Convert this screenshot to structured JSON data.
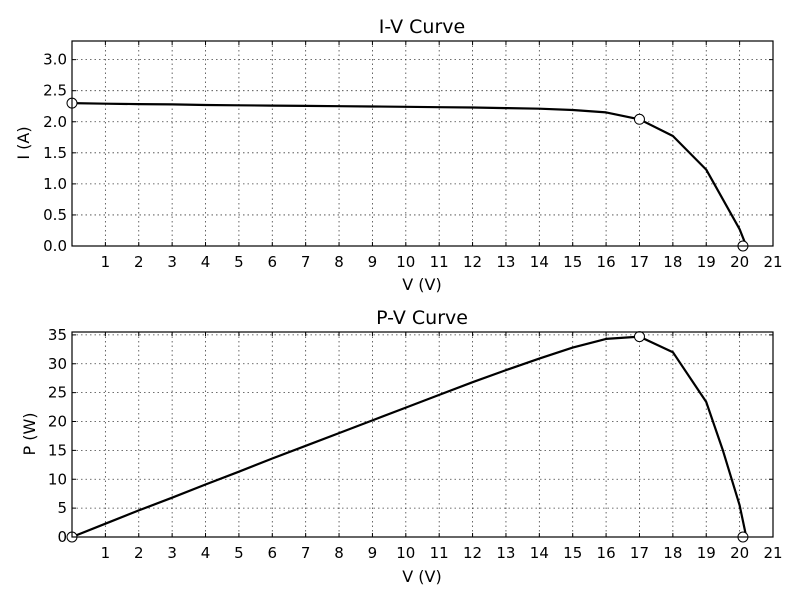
{
  "chart_data": [
    {
      "type": "line",
      "title": "I-V Curve",
      "xlabel": "V (V)",
      "ylabel": "I (A)",
      "xlim": [
        0,
        21
      ],
      "ylim": [
        0,
        3.3
      ],
      "grid": true,
      "xticks": [
        "1",
        "2",
        "3",
        "4",
        "5",
        "6",
        "7",
        "8",
        "9",
        "10",
        "11",
        "12",
        "13",
        "14",
        "15",
        "16",
        "17",
        "18",
        "19",
        "20",
        "21"
      ],
      "yticks": [
        "0.0",
        "0.5",
        "1.0",
        "1.5",
        "2.0",
        "2.5",
        "3.0"
      ],
      "series": [
        {
          "x": [
            0,
            1,
            2,
            3,
            4,
            5,
            6,
            7,
            8,
            9,
            10,
            11,
            12,
            13,
            14,
            15,
            16,
            17,
            18,
            19,
            20,
            20.2
          ],
          "y": [
            2.3,
            2.29,
            2.285,
            2.28,
            2.27,
            2.265,
            2.26,
            2.255,
            2.25,
            2.245,
            2.24,
            2.235,
            2.23,
            2.22,
            2.21,
            2.19,
            2.15,
            2.04,
            1.77,
            1.23,
            0.27,
            0.0
          ]
        }
      ],
      "markers": [
        {
          "x": 0,
          "y": 2.3
        },
        {
          "x": 17,
          "y": 2.04
        },
        {
          "x": 20.1,
          "y": 0.0
        }
      ]
    },
    {
      "type": "line",
      "title": "P-V Curve",
      "xlabel": "V (V)",
      "ylabel": "P (W)",
      "xlim": [
        0,
        21
      ],
      "ylim": [
        0,
        35.5
      ],
      "grid": true,
      "xticks": [
        "1",
        "2",
        "3",
        "4",
        "5",
        "6",
        "7",
        "8",
        "9",
        "10",
        "11",
        "12",
        "13",
        "14",
        "15",
        "16",
        "17",
        "18",
        "19",
        "20",
        "21"
      ],
      "yticks": [
        "0",
        "5",
        "10",
        "15",
        "20",
        "25",
        "30",
        "35"
      ],
      "series": [
        {
          "x": [
            0,
            1,
            2,
            3,
            4,
            5,
            6,
            7,
            8,
            9,
            10,
            11,
            12,
            13,
            14,
            15,
            16,
            17,
            18,
            19,
            19.5,
            20,
            20.2
          ],
          "y": [
            0,
            2.3,
            4.6,
            6.8,
            9.1,
            11.3,
            13.6,
            15.8,
            18.0,
            20.2,
            22.4,
            24.6,
            26.8,
            28.9,
            30.9,
            32.8,
            34.3,
            34.7,
            32.0,
            23.4,
            15.0,
            5.5,
            0.0
          ]
        }
      ],
      "markers": [
        {
          "x": 0,
          "y": 0
        },
        {
          "x": 17,
          "y": 34.7
        },
        {
          "x": 20.1,
          "y": 0.0
        }
      ]
    }
  ]
}
